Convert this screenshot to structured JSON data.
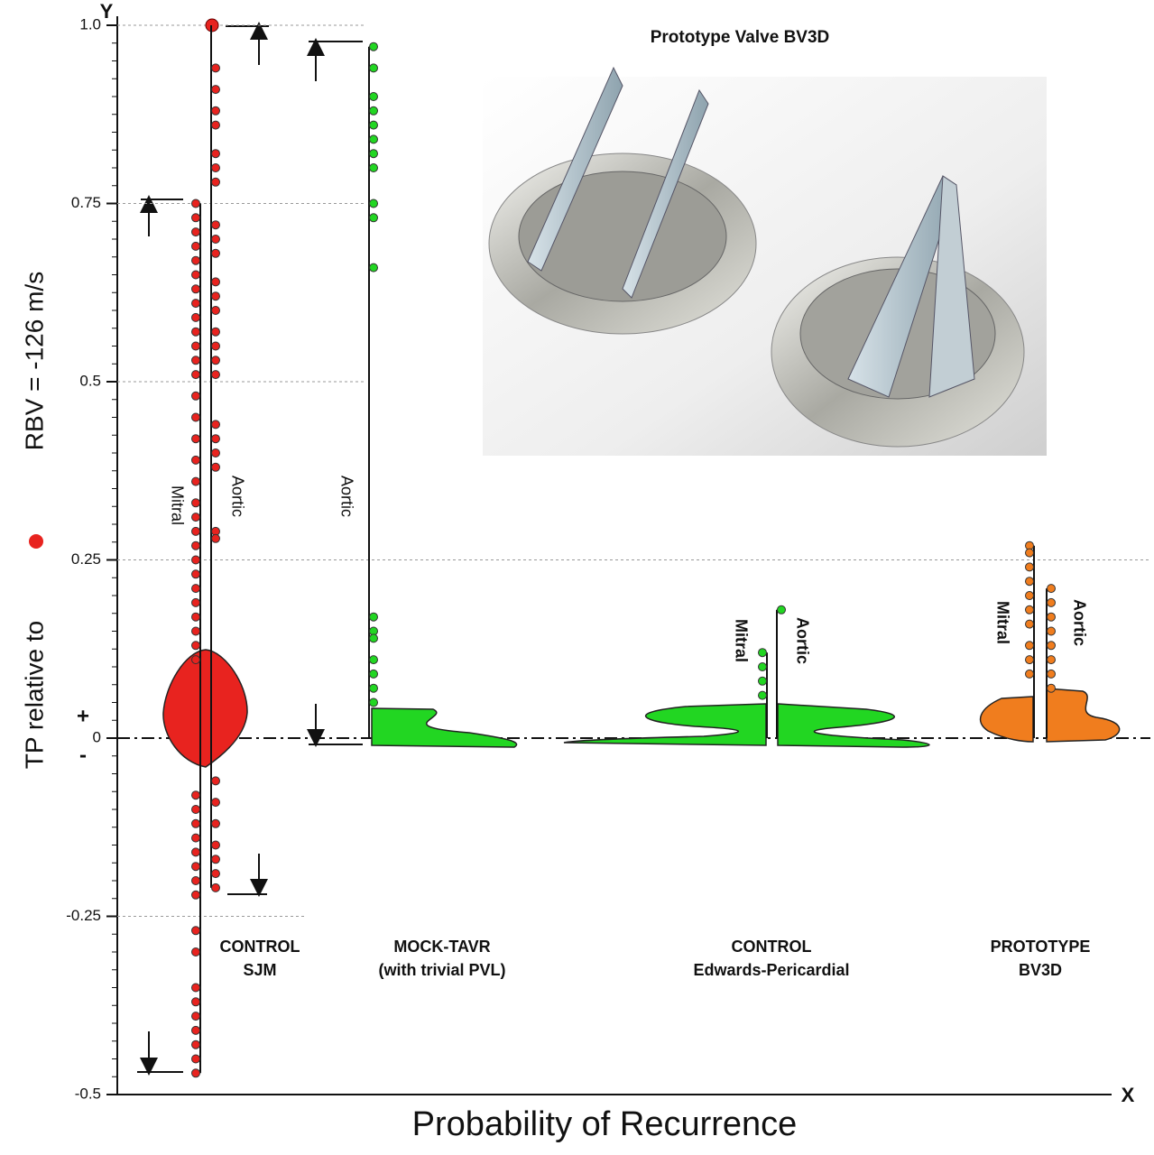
{
  "chart_data": {
    "type": "dot-violin",
    "title": "Prototype Valve BV3D",
    "y_axis_letter": "Y",
    "x_axis_letter": "X",
    "y_label_before_dot": "TP relative to",
    "y_label_after_dot": "RBV = -126 m/s",
    "x_label": "Probability of Recurrence",
    "plus_sign": "+",
    "minus_sign": "-",
    "reference_value": 1,
    "reference_color": "#e8231f",
    "ylim": [
      -0.5,
      1.0
    ],
    "yticks": [
      -0.5,
      -0.25,
      0,
      0.25,
      0.5,
      0.75,
      {
        "value": 1,
        "label": "1.0"
      }
    ],
    "groups": [
      {
        "label": [
          "CONTROL",
          "SJM"
        ],
        "color": "#e8231f",
        "series": [
          {
            "name": "Mitral",
            "values": [
              0.75,
              0.73,
              0.71,
              0.69,
              0.67,
              0.65,
              0.63,
              0.61,
              0.59,
              0.57,
              0.55,
              0.53,
              0.51,
              0.48,
              0.45,
              0.42,
              0.39,
              0.36,
              0.33,
              0.31,
              0.29,
              0.27,
              0.25,
              0.23,
              0.21,
              0.19,
              0.17,
              0.15,
              0.13,
              0.11,
              -0.08,
              -0.1,
              -0.12,
              -0.14,
              -0.16,
              -0.18,
              -0.2,
              -0.22,
              -0.27,
              -0.3,
              -0.35,
              -0.37,
              -0.39,
              -0.41,
              -0.43,
              -0.45,
              -0.47
            ]
          },
          {
            "name": "Aortic",
            "values": [
              0.94,
              0.91,
              0.88,
              0.86,
              0.82,
              0.8,
              0.78,
              0.72,
              0.7,
              0.68,
              0.64,
              0.62,
              0.6,
              0.57,
              0.55,
              0.53,
              0.51,
              0.44,
              0.42,
              0.4,
              0.38,
              0.29,
              0.28,
              -0.06,
              -0.09,
              -0.12,
              -0.15,
              -0.17,
              -0.19,
              -0.21
            ]
          }
        ]
      },
      {
        "label": [
          "MOCK-TAVR",
          "(with trivial PVL)"
        ],
        "color": "#22d622",
        "series": [
          {
            "name": "Aortic",
            "values": [
              0.97,
              0.94,
              0.9,
              0.88,
              0.86,
              0.84,
              0.82,
              0.8,
              0.75,
              0.73,
              0.66,
              0.17,
              0.15,
              0.14,
              0.11,
              0.09,
              0.07,
              0.05
            ]
          }
        ]
      },
      {
        "label": [
          "CONTROL",
          "Edwards-Pericardial"
        ],
        "color": "#22d622",
        "series": [
          {
            "name": "Mitral",
            "values": [
              0.12,
              0.1,
              0.08,
              0.06
            ]
          },
          {
            "name": "Aortic",
            "values": [
              0.18
            ]
          }
        ]
      },
      {
        "label": [
          "PROTOTYPE",
          "BV3D"
        ],
        "color": "#f07d1e",
        "series": [
          {
            "name": "Mitral",
            "values": [
              0.27,
              0.26,
              0.24,
              0.22,
              0.2,
              0.18,
              0.16,
              0.13,
              0.11,
              0.09
            ]
          },
          {
            "name": "Aortic",
            "values": [
              0.21,
              0.19,
              0.17,
              0.15,
              0.13,
              0.11,
              0.09,
              0.07
            ]
          }
        ]
      }
    ]
  }
}
